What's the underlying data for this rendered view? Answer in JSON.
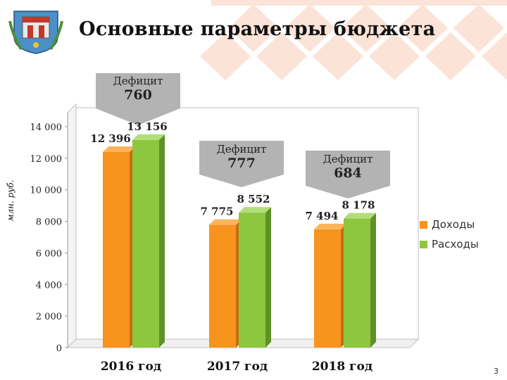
{
  "slide": {
    "title": "Основные параметры бюджета",
    "page_number": "3"
  },
  "colors": {
    "income": "#f7941d",
    "expense": "#8dc63f",
    "decoration": "#fbe3d7",
    "callout": "#b3b3b3"
  },
  "callouts": [
    {
      "label": "Дефицит",
      "value": "760"
    },
    {
      "label": "Дефицит",
      "value": "777"
    },
    {
      "label": "Дефицит",
      "value": "684"
    }
  ],
  "chart_data": {
    "type": "bar",
    "style": "3d-clustered",
    "categories": [
      "2016 год",
      "2017 год",
      "2018 год"
    ],
    "series": [
      {
        "name": "Доходы",
        "values": [
          12396,
          7775,
          7494
        ],
        "labels": [
          "12 396",
          "7 775",
          "7 494"
        ]
      },
      {
        "name": "Расходы",
        "values": [
          13156,
          8552,
          8178
        ],
        "labels": [
          "13 156",
          "8 552",
          "8 178"
        ]
      }
    ],
    "ylabel": "млн. руб.",
    "ylim": [
      0,
      14000
    ],
    "yticks": [
      0,
      2000,
      4000,
      6000,
      8000,
      10000,
      12000,
      14000
    ],
    "ytick_labels": [
      "0",
      "2 000",
      "4 000",
      "6 000",
      "8 000",
      "10 000",
      "12 000",
      "14 000"
    ],
    "grid": false,
    "legend": "right"
  }
}
